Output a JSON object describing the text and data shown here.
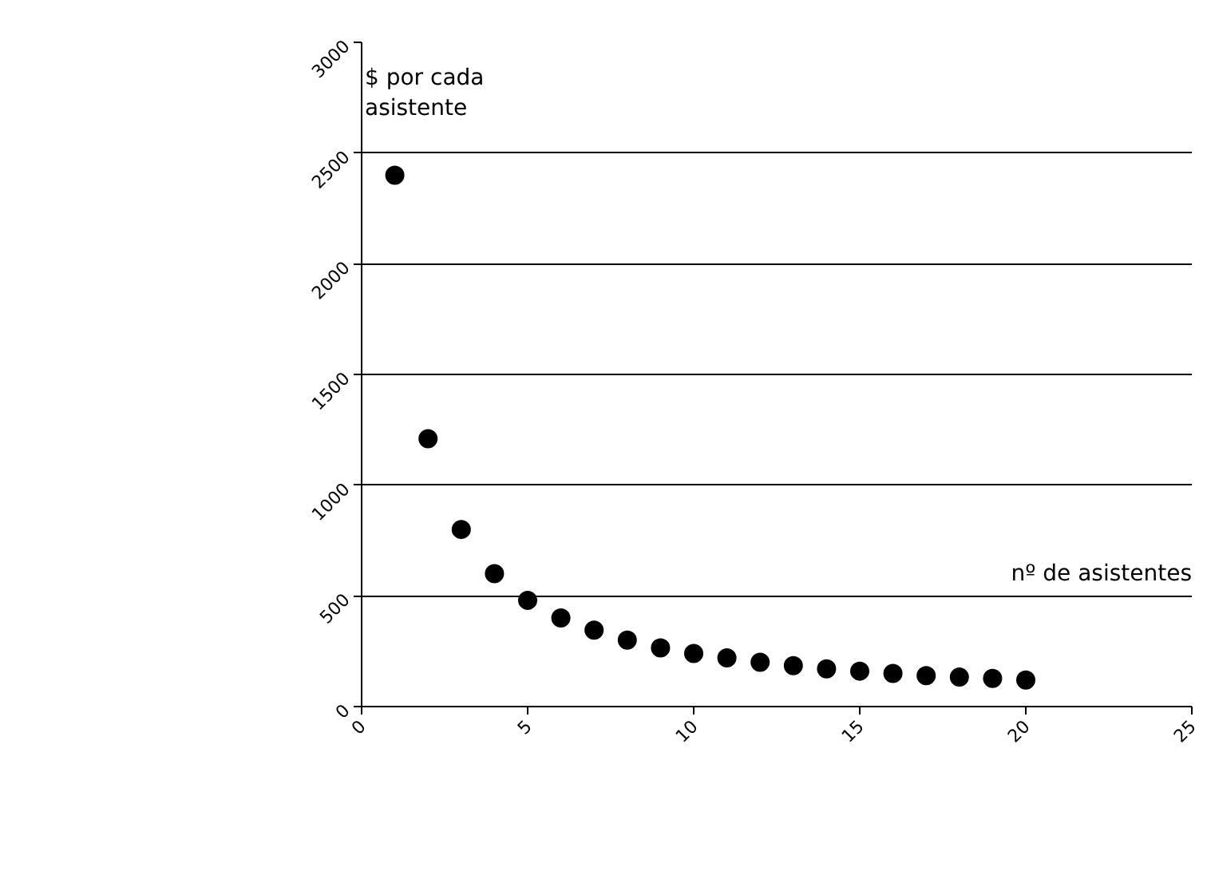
{
  "chart_data": {
    "type": "scatter",
    "xlabel": "nº de asistentes",
    "ylabel": "$ por cada asistente",
    "x": [
      1,
      2,
      3,
      4,
      5,
      6,
      7,
      8,
      9,
      10,
      11,
      12,
      13,
      14,
      15,
      16,
      17,
      18,
      19,
      20
    ],
    "series": [
      {
        "color": "#000000",
        "values": [
          2400,
          1210,
          800,
          600,
          480,
          400,
          345,
          300,
          265,
          240,
          220,
          200,
          185,
          170,
          160,
          150,
          140,
          133,
          127,
          120
        ]
      }
    ],
    "xlim": [
      0,
      25
    ],
    "xticks": [
      0,
      5,
      10,
      15,
      20,
      25
    ],
    "ylim": [
      0,
      3000
    ],
    "yticks": [
      0,
      500,
      1000,
      1500,
      2000,
      2500,
      3000
    ],
    "grid": "y",
    "marker": "circle"
  }
}
